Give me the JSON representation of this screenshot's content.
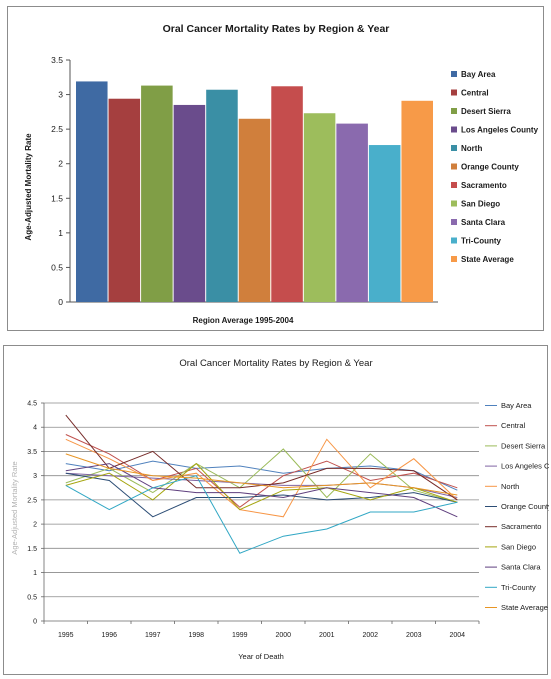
{
  "chart_data": [
    {
      "type": "bar",
      "title": "Oral Cancer Mortality Rates by Region & Year",
      "xlabel": "Region Average 1995-2004",
      "ylabel": "Age-Adjusted Mortality Rate",
      "ylim": [
        0,
        3.5
      ],
      "yticks": [
        "0",
        "0.5",
        "1",
        "1.5",
        "2",
        "2.5",
        "3",
        "3.5"
      ],
      "legend_position": "right",
      "grid": false,
      "series": [
        {
          "name": "Bay Area",
          "value": 3.19,
          "color": "#3F6AA3"
        },
        {
          "name": "Central",
          "value": 2.94,
          "color": "#A53F3F"
        },
        {
          "name": "Desert Sierra",
          "value": 3.13,
          "color": "#809E46"
        },
        {
          "name": "Los Angeles County",
          "value": 2.85,
          "color": "#6A4C8C"
        },
        {
          "name": "North",
          "value": 3.07,
          "color": "#3A8FA5"
        },
        {
          "name": "Orange County",
          "value": 2.65,
          "color": "#D07F3C"
        },
        {
          "name": "Sacramento",
          "value": 3.12,
          "color": "#C54D4D"
        },
        {
          "name": "San Diego",
          "value": 2.73,
          "color": "#9DBD5C"
        },
        {
          "name": "Santa Clara",
          "value": 2.58,
          "color": "#8A6AAE"
        },
        {
          "name": "Tri-County",
          "value": 2.27,
          "color": "#49AFCB"
        },
        {
          "name": "State Average",
          "value": 2.91,
          "color": "#F79A48"
        }
      ]
    },
    {
      "type": "line",
      "title": "Oral Cancer Mortality Rates by Region & Year",
      "xlabel": "Year of Death",
      "ylabel": "Age-Adjusted Mortality Rate",
      "ylim": [
        0,
        4.5
      ],
      "yticks": [
        "0",
        "0.5",
        "1",
        "1.5",
        "2",
        "2.5",
        "3",
        "3.5",
        "4",
        "4.5"
      ],
      "x": [
        "1995",
        "1996",
        "1997",
        "1998",
        "1999",
        "2000",
        "2001",
        "2002",
        "2003",
        "2004"
      ],
      "legend_position": "right",
      "grid": true,
      "series": [
        {
          "name": "Bay Area",
          "color": "#4F81BD",
          "values": [
            3.25,
            3.1,
            3.3,
            3.15,
            3.2,
            3.05,
            3.15,
            3.2,
            3.1,
            2.7
          ]
        },
        {
          "name": "Central",
          "color": "#C0504D",
          "values": [
            3.85,
            3.45,
            2.9,
            3.15,
            2.35,
            3.0,
            3.3,
            2.9,
            3.05,
            2.75
          ]
        },
        {
          "name": "Desert Sierra",
          "color": "#9BBB59",
          "values": [
            2.85,
            3.15,
            2.65,
            3.25,
            2.75,
            3.55,
            2.55,
            3.45,
            2.7,
            2.45
          ]
        },
        {
          "name": "Los Angeles County",
          "color": "#8064A2",
          "values": [
            3.05,
            3.0,
            2.95,
            2.9,
            2.85,
            2.8,
            2.8,
            2.85,
            2.75,
            2.55
          ]
        },
        {
          "name": "North",
          "color": "#F79646",
          "values": [
            3.75,
            3.35,
            2.9,
            3.05,
            2.3,
            2.15,
            3.75,
            2.75,
            3.35,
            2.5
          ]
        },
        {
          "name": "Orange County",
          "color": "#2C4D75",
          "values": [
            3.05,
            2.9,
            2.15,
            2.55,
            2.55,
            2.6,
            2.5,
            2.55,
            2.65,
            2.45
          ]
        },
        {
          "name": "Sacramento",
          "color": "#772C2A",
          "values": [
            4.25,
            3.15,
            3.5,
            2.75,
            2.75,
            2.85,
            3.15,
            3.15,
            3.1,
            2.5
          ]
        },
        {
          "name": "San Diego",
          "color": "#A5A50F",
          "values": [
            2.8,
            3.05,
            2.5,
            3.25,
            2.3,
            2.7,
            2.75,
            2.5,
            2.75,
            2.45
          ]
        },
        {
          "name": "Santa Clara",
          "color": "#5F3F7E",
          "values": [
            3.1,
            3.25,
            2.75,
            2.65,
            2.65,
            2.55,
            2.75,
            2.65,
            2.55,
            2.15
          ]
        },
        {
          "name": "Tri-County",
          "color": "#31A7C4",
          "values": [
            2.8,
            2.3,
            2.75,
            3.0,
            1.4,
            1.75,
            1.9,
            2.25,
            2.25,
            2.45
          ]
        },
        {
          "name": "State Average",
          "color": "#E89524",
          "values": [
            3.45,
            3.15,
            3.0,
            2.95,
            2.85,
            2.75,
            2.8,
            2.85,
            2.75,
            2.6
          ]
        }
      ]
    }
  ]
}
